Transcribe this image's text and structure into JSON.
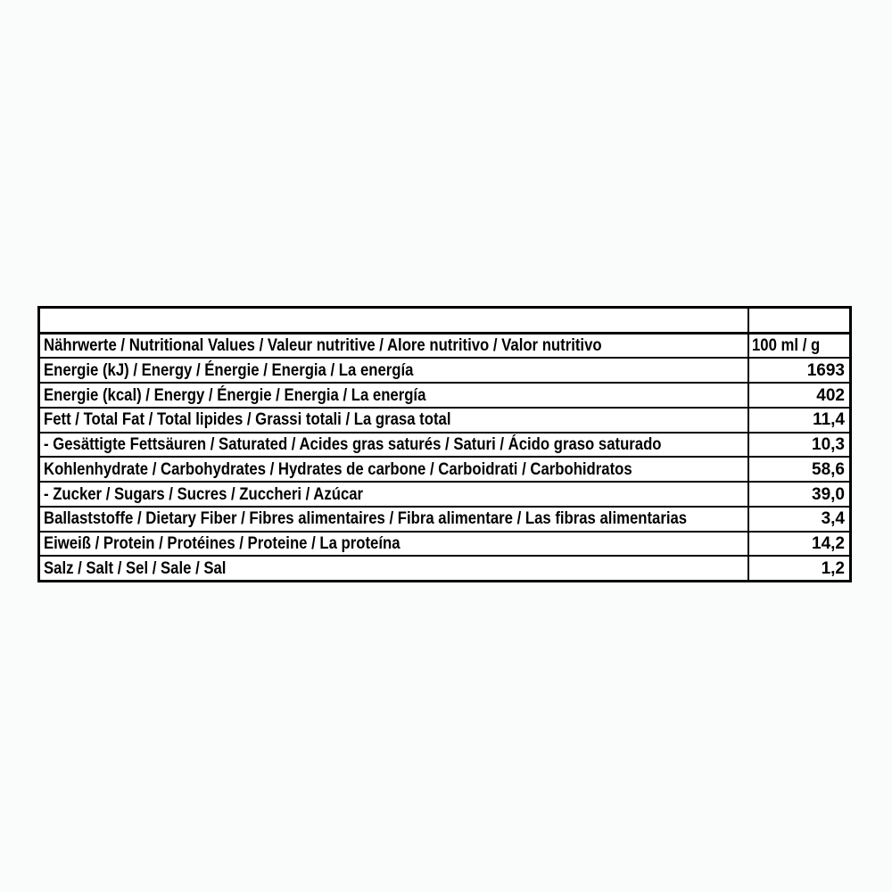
{
  "page": {
    "background_color": "#fafcfb"
  },
  "table": {
    "border_color": "#000000",
    "cell_background": "#ffffff",
    "text_color": "#000000",
    "header_label": "Nährwerte / Nutritional Values / Valeur nutritive / Alore nutritivo / Valor nutritivo",
    "unit_header": "100 ml / g",
    "rows": [
      {
        "label": "Energie (kJ) / Energy / Énergie / Energia / La energía",
        "value": "1693"
      },
      {
        "label": "Energie (kcal) / Energy / Énergie / Energia / La energía",
        "value": "402"
      },
      {
        "label": "Fett / Total Fat / Total lipides / Grassi totali / La grasa total",
        "value": "11,4"
      },
      {
        "label": "- Gesättigte Fettsäuren / Saturated / Acides gras saturés / Saturi / Ácido graso saturado",
        "value": "10,3"
      },
      {
        "label": "Kohlenhydrate / Carbohydrates / Hydrates de carbone / Carboidrati / Carbohidratos",
        "value": "58,6"
      },
      {
        "label": "- Zucker / Sugars / Sucres / Zuccheri / Azúcar",
        "value": "39,0"
      },
      {
        "label": "Ballaststoffe / Dietary Fiber / Fibres alimentaires / Fibra alimentare / Las fibras alimentarias",
        "value": "3,4"
      },
      {
        "label": "Eiweiß / Protein / Protéines / Proteine / La proteína",
        "value": "14,2"
      },
      {
        "label": "Salz / Salt / Sel / Sale / Sal",
        "value": "1,2"
      }
    ]
  }
}
